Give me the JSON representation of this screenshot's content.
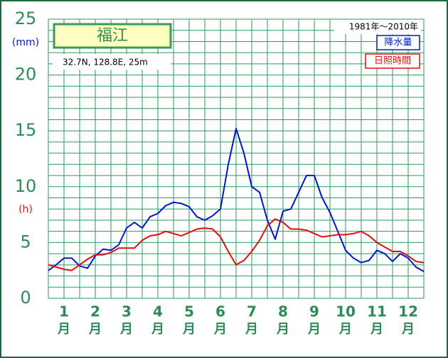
{
  "chart_data": {
    "type": "line",
    "title": "福江",
    "subtitle": "32.7N,  128.8E,  25m",
    "period": "1981年〜2010年",
    "ylabel_left": "(mm)",
    "ylabel_mid": "(h)",
    "x": [
      0,
      0.25,
      0.5,
      0.75,
      1,
      1.25,
      1.5,
      1.75,
      2,
      2.25,
      2.5,
      2.75,
      3,
      3.25,
      3.5,
      3.75,
      4,
      4.25,
      4.5,
      4.75,
      5,
      5.25,
      5.5,
      5.75,
      6,
      6.25,
      6.5,
      6.75,
      7,
      7.25,
      7.5,
      7.75,
      8,
      8.25,
      8.5,
      8.75,
      9,
      9.25,
      9.5,
      9.75,
      10,
      10.25,
      10.5,
      10.75,
      11,
      11.25,
      11.5,
      11.75,
      12
    ],
    "series": [
      {
        "name": "降水量",
        "color": "#0018c8",
        "values": [
          2.5,
          3.0,
          3.6,
          3.6,
          2.9,
          2.7,
          3.8,
          4.4,
          4.3,
          4.8,
          6.3,
          6.8,
          6.3,
          7.3,
          7.6,
          8.3,
          8.6,
          8.5,
          8.2,
          7.3,
          7.0,
          7.4,
          8.0,
          12.0,
          15.2,
          13.0,
          10.0,
          9.5,
          7.0,
          5.3,
          7.8,
          8.0,
          9.5,
          11.0,
          11.0,
          9.0,
          7.7,
          6.0,
          4.3,
          3.6,
          3.2,
          3.4,
          4.3,
          4.0,
          3.3,
          4.0,
          3.6,
          2.8,
          2.4
        ]
      },
      {
        "name": "日照時間",
        "color": "#e01010",
        "values": [
          3.0,
          2.8,
          2.6,
          2.5,
          3.0,
          3.5,
          3.9,
          3.9,
          4.1,
          4.5,
          4.5,
          4.5,
          5.2,
          5.6,
          5.7,
          6.0,
          5.8,
          5.6,
          5.9,
          6.2,
          6.3,
          6.2,
          5.5,
          4.2,
          3.0,
          3.4,
          4.2,
          5.2,
          6.5,
          7.1,
          6.8,
          6.2,
          6.2,
          6.1,
          5.8,
          5.5,
          5.6,
          5.7,
          5.7,
          5.8,
          6.0,
          5.6,
          5.0,
          4.6,
          4.2,
          4.2,
          3.8,
          3.3,
          3.2
        ]
      }
    ],
    "xlim": [
      0,
      12
    ],
    "xticks": [
      {
        "value": 0.5,
        "label": "1"
      },
      {
        "value": 1.5,
        "label": "2"
      },
      {
        "value": 2.5,
        "label": "3"
      },
      {
        "value": 3.5,
        "label": "4"
      },
      {
        "value": 4.5,
        "label": "5"
      },
      {
        "value": 5.5,
        "label": "6"
      },
      {
        "value": 6.5,
        "label": "7"
      },
      {
        "value": 7.5,
        "label": "8"
      },
      {
        "value": 8.5,
        "label": "9"
      },
      {
        "value": 9.5,
        "label": "10"
      },
      {
        "value": 10.5,
        "label": "11"
      },
      {
        "value": 11.5,
        "label": "12"
      }
    ],
    "xtick_unit": "月",
    "xgrid": [
      0,
      0.5,
      1,
      1.5,
      2,
      2.5,
      3,
      3.5,
      4,
      4.5,
      5,
      5.5,
      6,
      6.5,
      7,
      7.5,
      8,
      8.5,
      9,
      9.5,
      10,
      10.5,
      11,
      11.5,
      12
    ],
    "ylim": [
      0,
      25
    ],
    "yticks": [
      0,
      5,
      10,
      15,
      20,
      25
    ],
    "ygrid": [
      0,
      1,
      2,
      3,
      4,
      5,
      6,
      7,
      8,
      9,
      10,
      11,
      12,
      13,
      14,
      15,
      16,
      17,
      18,
      19,
      20,
      21,
      22,
      23,
      24,
      25
    ],
    "grid": true
  }
}
